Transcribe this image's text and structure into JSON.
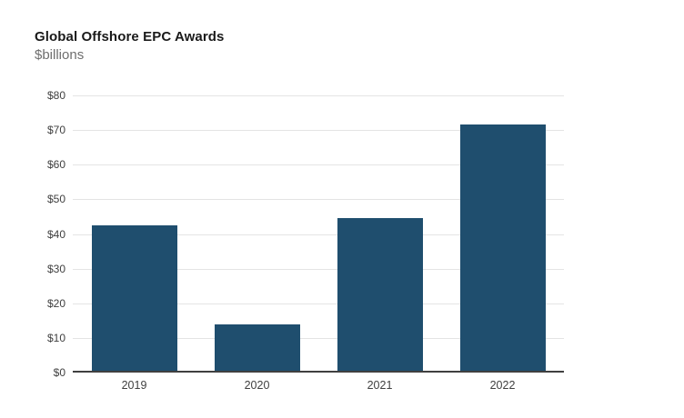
{
  "header": {
    "title": "Global Offshore EPC Awards",
    "subtitle": "$billions"
  },
  "chart_data": {
    "type": "bar",
    "title": "Global Offshore EPC Awards",
    "subtitle": "$billions",
    "categories": [
      "2019",
      "2020",
      "2021",
      "2022"
    ],
    "values": [
      42,
      13.5,
      44,
      71
    ],
    "xlabel": "",
    "ylabel": "$billions",
    "ylim": [
      0,
      80
    ],
    "ytick_interval": 10,
    "ytick_labels": [
      "$0",
      "$10",
      "$20",
      "$30",
      "$40",
      "$50",
      "$60",
      "$70",
      "$80"
    ],
    "grid": true,
    "legend": false,
    "colors": {
      "bar": "#1f4e6e",
      "gridline": "#e4e4e4",
      "axis_line": "#404040",
      "tick_label": "#404040",
      "title": "#1a1a1a",
      "subtitle": "#6e6e6e",
      "background": "#ffffff"
    }
  }
}
